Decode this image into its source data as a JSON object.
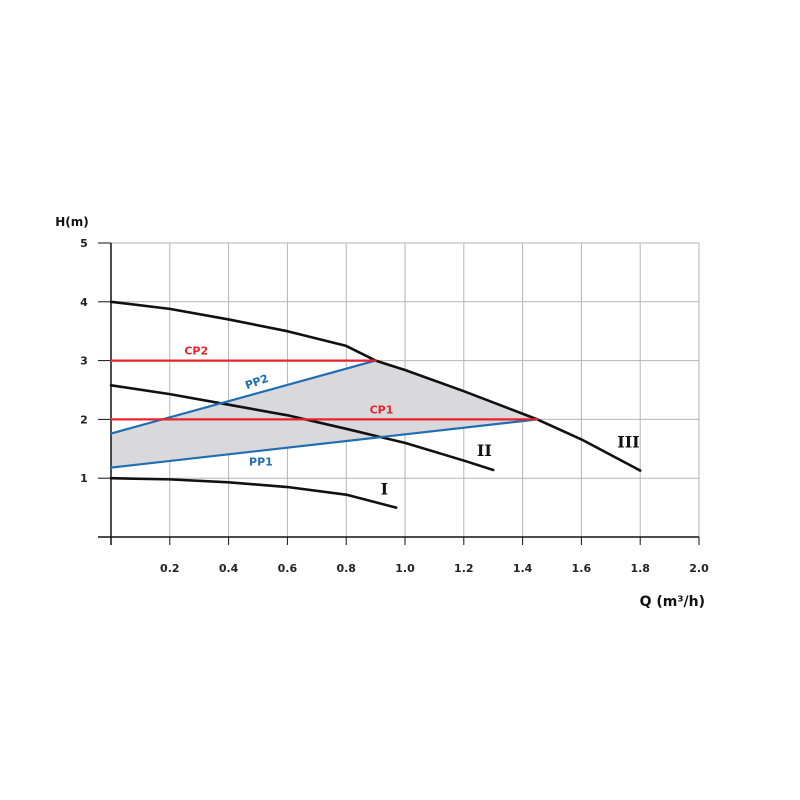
{
  "chart_data": {
    "type": "line",
    "xlabel": "Q (m³/h)",
    "ylabel": "H(m)",
    "xlim": [
      0,
      2.0
    ],
    "ylim": [
      0,
      5
    ],
    "x_ticks": [
      "0.2",
      "0.4",
      "0.6",
      "0.8",
      "1.0",
      "1.2",
      "1.4",
      "1.6",
      "1.8",
      "2.0"
    ],
    "y_ticks": [
      "1",
      "2",
      "3",
      "4",
      "5"
    ],
    "grid": true,
    "colors": {
      "pump_curve": "#111111",
      "proportional": "#1f6db3",
      "constant": "#e8242b",
      "region": "#d9d9db",
      "grid": "#b5b5b5"
    },
    "series": [
      {
        "name": "I",
        "kind": "pump",
        "x": [
          0,
          0.2,
          0.4,
          0.6,
          0.8,
          0.97
        ],
        "y": [
          1.0,
          0.98,
          0.93,
          0.85,
          0.72,
          0.5
        ]
      },
      {
        "name": "II",
        "kind": "pump",
        "x": [
          0,
          0.2,
          0.4,
          0.6,
          0.8,
          1.0,
          1.2,
          1.3
        ],
        "y": [
          2.58,
          2.43,
          2.25,
          2.07,
          1.84,
          1.6,
          1.3,
          1.14
        ]
      },
      {
        "name": "III",
        "kind": "pump",
        "x": [
          0,
          0.2,
          0.4,
          0.6,
          0.8,
          0.9,
          1.0,
          1.2,
          1.45,
          1.6,
          1.8
        ],
        "y": [
          4.0,
          3.88,
          3.7,
          3.5,
          3.25,
          3.0,
          2.84,
          2.48,
          2.0,
          1.66,
          1.13
        ]
      },
      {
        "name": "PP1",
        "kind": "proportional",
        "x": [
          0,
          1.45
        ],
        "y": [
          1.18,
          2.0
        ]
      },
      {
        "name": "PP2",
        "kind": "proportional",
        "x": [
          0,
          0.9
        ],
        "y": [
          1.76,
          3.0
        ]
      },
      {
        "name": "CP1",
        "kind": "constant",
        "x": [
          0,
          1.45
        ],
        "y": [
          2.0,
          2.0
        ]
      },
      {
        "name": "CP2",
        "kind": "constant",
        "x": [
          0,
          0.9
        ],
        "y": [
          3.0,
          3.0
        ]
      }
    ],
    "labels": [
      {
        "text": "I",
        "x": 0.93,
        "y": 0.72,
        "kind": "pump"
      },
      {
        "text": "II",
        "x": 1.27,
        "y": 1.38,
        "kind": "pump"
      },
      {
        "text": "III",
        "x": 1.76,
        "y": 1.52,
        "kind": "pump"
      },
      {
        "text": "CP2",
        "x": 0.29,
        "y": 3.1,
        "kind": "constant"
      },
      {
        "text": "CP1",
        "x": 0.92,
        "y": 2.1,
        "kind": "constant"
      },
      {
        "text": "PP2",
        "x": 0.5,
        "y": 2.58,
        "kind": "proportional",
        "angle": -20
      },
      {
        "text": "PP1",
        "x": 0.51,
        "y": 1.22,
        "kind": "proportional"
      }
    ]
  }
}
